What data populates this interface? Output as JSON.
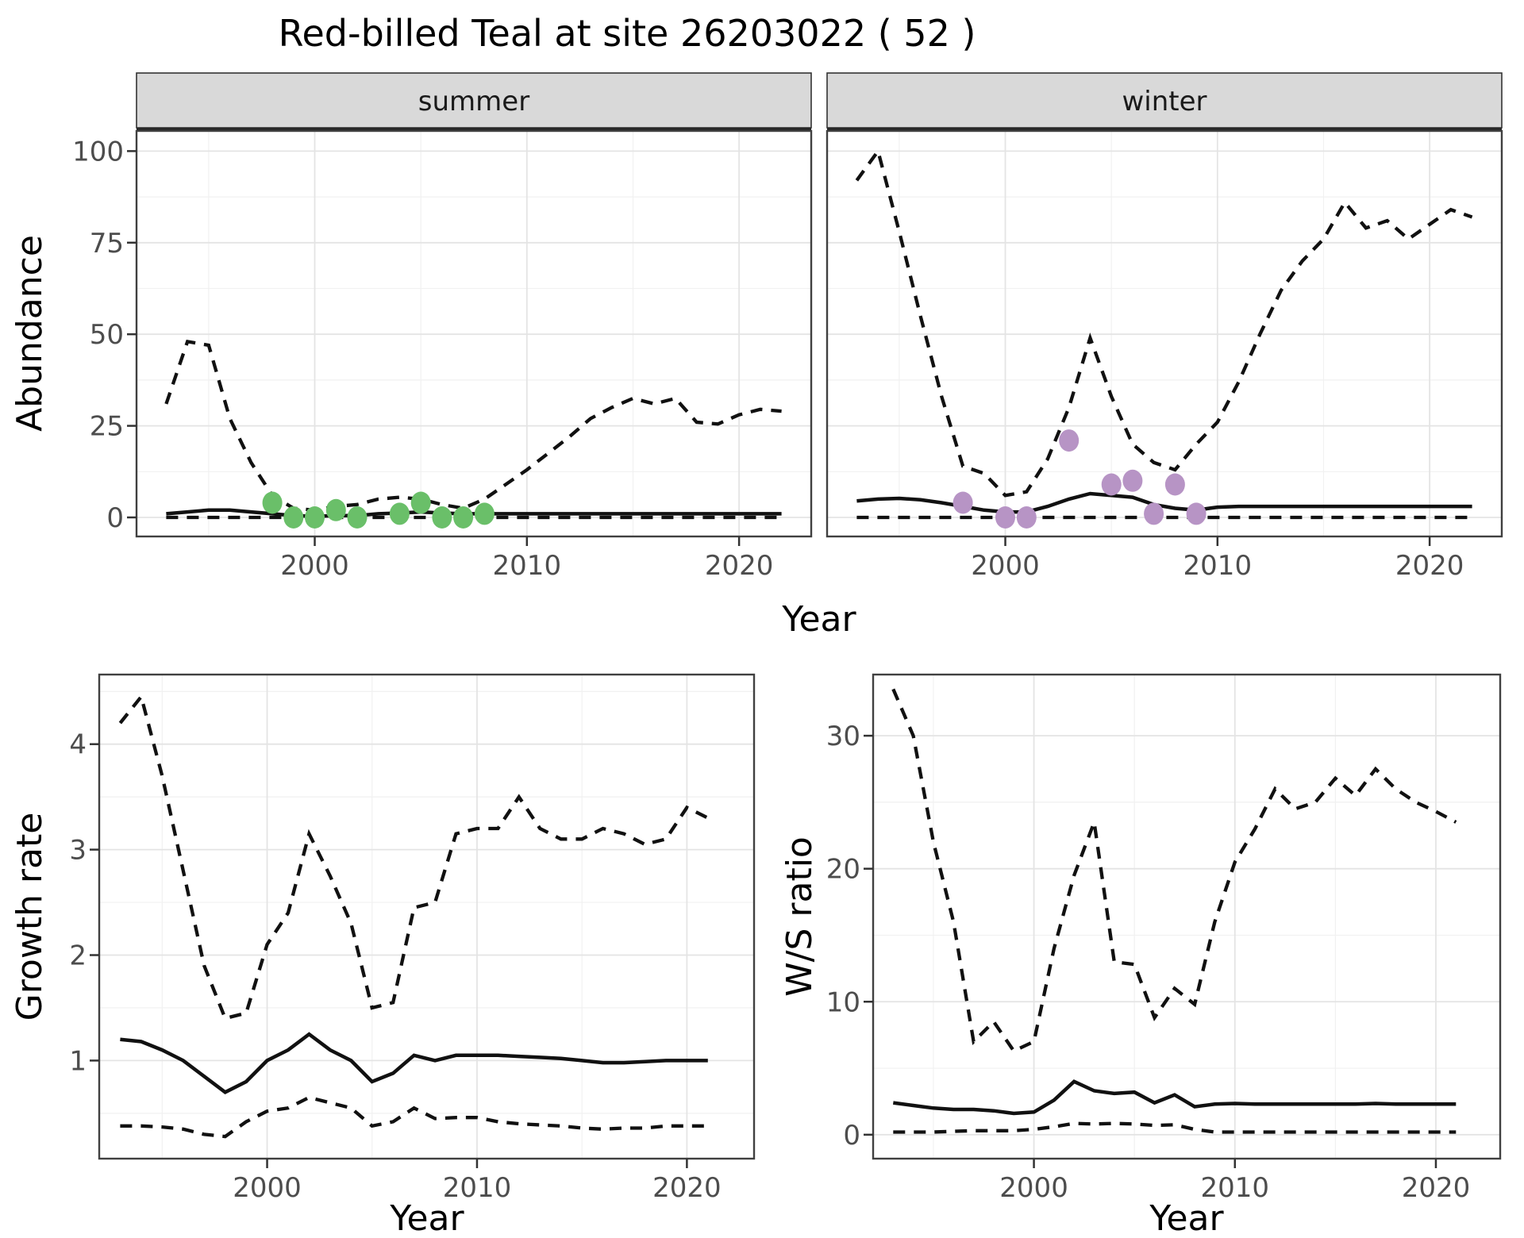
{
  "title": "Red-billed Teal at site 26203022 ( 52 )",
  "axis_titles": {
    "x": "Year",
    "y_top": "Abundance",
    "y_growth": "Growth rate",
    "y_ratio": "W/S ratio"
  },
  "facets": [
    "summer",
    "winter"
  ],
  "colors": {
    "summer_points": "#6abf69",
    "winter_points": "#b794c5",
    "line": "#111111",
    "strip_bg": "#d9d9d9",
    "strip_border": "#333333",
    "panel_border": "#404040",
    "grid_major": "#e4e4e4",
    "grid_minor": "#f1f1f1",
    "tick_text": "#4d4d4d"
  },
  "chart_data": [
    {
      "id": "abundance-summer",
      "type": "line",
      "facet": "summer",
      "xlabel": "Year",
      "ylabel": "Abundance",
      "xlim": [
        1991.6,
        2023.4
      ],
      "ylim": [
        -5.2,
        105.5
      ],
      "x_ticks": [
        2000,
        2010,
        2020
      ],
      "x_minor": [
        1995,
        2005,
        2015
      ],
      "y_ticks": [
        0,
        25,
        50,
        75,
        100
      ],
      "y_minor": [
        12.5,
        37.5,
        62.5,
        87.5
      ],
      "grid": true,
      "legend": "none",
      "x": [
        1993,
        1994,
        1995,
        1996,
        1997,
        1998,
        1999,
        2000,
        2001,
        2002,
        2003,
        2004,
        2005,
        2006,
        2007,
        2008,
        2009,
        2010,
        2011,
        2012,
        2013,
        2014,
        2015,
        2016,
        2017,
        2018,
        2019,
        2020,
        2021,
        2022
      ],
      "series": [
        {
          "name": "upper-ci",
          "style": "dashed",
          "values": [
            31,
            48,
            47,
            27,
            15,
            6,
            2.5,
            2,
            3,
            3.5,
            5,
            5.5,
            5,
            3.5,
            2.5,
            5,
            9,
            13,
            17.5,
            22,
            27,
            30,
            32.5,
            31,
            32.5,
            26,
            25.5,
            28,
            29.5,
            29
          ]
        },
        {
          "name": "median",
          "style": "solid",
          "values": [
            1,
            1.5,
            2,
            2,
            1.5,
            1,
            0.5,
            0.3,
            0.5,
            0.5,
            1,
            1.2,
            1.5,
            1.2,
            1,
            1,
            1,
            1,
            1,
            1,
            1,
            1,
            1,
            1,
            1,
            1,
            1,
            1,
            1,
            1
          ]
        },
        {
          "name": "lower-ci",
          "style": "dashed",
          "values": [
            0,
            0,
            0,
            0,
            0,
            0,
            0,
            0,
            0,
            0,
            0,
            0,
            0,
            0,
            0,
            0,
            0,
            0,
            0,
            0,
            0,
            0,
            0,
            0,
            0,
            0,
            0,
            0,
            0,
            0
          ]
        }
      ],
      "points": {
        "name": "observed-counts-summer",
        "color_key": "summer_points",
        "x": [
          1998,
          1999,
          2000,
          2001,
          2002,
          2004,
          2005,
          2006,
          2007,
          2008
        ],
        "y": [
          4,
          0,
          0,
          2,
          0,
          1,
          4,
          0,
          0,
          1
        ]
      }
    },
    {
      "id": "abundance-winter",
      "type": "line",
      "facet": "winter",
      "xlabel": "Year",
      "ylabel": "Abundance",
      "xlim": [
        1991.6,
        2023.4
      ],
      "ylim": [
        -5.2,
        105.5
      ],
      "x_ticks": [
        2000,
        2010,
        2020
      ],
      "x_minor": [
        1995,
        2005,
        2015
      ],
      "y_ticks": [
        0,
        25,
        50,
        75,
        100
      ],
      "y_minor": [
        12.5,
        37.5,
        62.5,
        87.5
      ],
      "grid": true,
      "legend": "none",
      "x": [
        1993,
        1994,
        1995,
        1996,
        1997,
        1998,
        1999,
        2000,
        2001,
        2002,
        2003,
        2004,
        2005,
        2006,
        2007,
        2008,
        2009,
        2010,
        2011,
        2012,
        2013,
        2014,
        2015,
        2016,
        2017,
        2018,
        2019,
        2020,
        2021,
        2022
      ],
      "series": [
        {
          "name": "upper-ci",
          "style": "dashed",
          "values": [
            92,
            100,
            78,
            55,
            33,
            14,
            12,
            6,
            7,
            16,
            30,
            49,
            33,
            20,
            15,
            13,
            20,
            26,
            37,
            50,
            62,
            70,
            76,
            86,
            79,
            81,
            76,
            80,
            84,
            82
          ]
        },
        {
          "name": "median",
          "style": "solid",
          "values": [
            4.5,
            5,
            5.2,
            4.8,
            4,
            3,
            2,
            1.5,
            1.5,
            3,
            5,
            6.5,
            6,
            5.5,
            3.5,
            2.5,
            2,
            2.8,
            3,
            3,
            3,
            3,
            3,
            3,
            3,
            3,
            3,
            3,
            3,
            3
          ]
        },
        {
          "name": "lower-ci",
          "style": "dashed",
          "values": [
            0,
            0,
            0,
            0,
            0,
            0,
            0,
            0,
            0,
            0,
            0,
            0,
            0,
            0,
            0,
            0,
            0,
            0,
            0,
            0,
            0,
            0,
            0,
            0,
            0,
            0,
            0,
            0,
            0,
            0
          ]
        }
      ],
      "points": {
        "name": "observed-counts-winter",
        "color_key": "winter_points",
        "x": [
          1998,
          2000,
          2001,
          2003,
          2005,
          2006,
          2007,
          2008,
          2009
        ],
        "y": [
          4,
          0,
          0,
          21,
          9,
          10,
          1,
          9,
          1
        ]
      }
    },
    {
      "id": "growth-rate",
      "type": "line",
      "facet": null,
      "xlabel": "Year",
      "ylabel": "Growth rate",
      "xlim": [
        1992,
        2023.2
      ],
      "ylim": [
        0.07,
        4.66
      ],
      "x_ticks": [
        2000,
        2010,
        2020
      ],
      "x_minor": [
        1995,
        2005,
        2015
      ],
      "y_ticks": [
        1,
        2,
        3,
        4
      ],
      "y_minor": [
        0.5,
        1.5,
        2.5,
        3.5,
        4.5
      ],
      "grid": true,
      "legend": "none",
      "x": [
        1993,
        1994,
        1995,
        1996,
        1997,
        1998,
        1999,
        2000,
        2001,
        2002,
        2003,
        2004,
        2005,
        2006,
        2007,
        2008,
        2009,
        2010,
        2011,
        2012,
        2013,
        2014,
        2015,
        2016,
        2017,
        2018,
        2019,
        2020,
        2021
      ],
      "series": [
        {
          "name": "upper-ci",
          "style": "dashed",
          "values": [
            4.2,
            4.45,
            3.7,
            2.8,
            1.9,
            1.4,
            1.45,
            2.1,
            2.4,
            3.15,
            2.75,
            2.3,
            1.5,
            1.55,
            2.45,
            2.5,
            3.15,
            3.2,
            3.2,
            3.5,
            3.2,
            3.1,
            3.1,
            3.2,
            3.15,
            3.05,
            3.1,
            3.4,
            3.3
          ]
        },
        {
          "name": "median",
          "style": "solid",
          "values": [
            1.2,
            1.18,
            1.1,
            1.0,
            0.85,
            0.7,
            0.8,
            1.0,
            1.1,
            1.25,
            1.1,
            1.0,
            0.8,
            0.88,
            1.05,
            1.0,
            1.05,
            1.05,
            1.05,
            1.04,
            1.03,
            1.02,
            1.0,
            0.98,
            0.98,
            0.99,
            1.0,
            1.0,
            1.0
          ]
        },
        {
          "name": "lower-ci",
          "style": "dashed",
          "values": [
            0.38,
            0.38,
            0.37,
            0.35,
            0.3,
            0.28,
            0.42,
            0.52,
            0.55,
            0.65,
            0.6,
            0.55,
            0.38,
            0.42,
            0.55,
            0.45,
            0.46,
            0.46,
            0.42,
            0.4,
            0.39,
            0.38,
            0.36,
            0.35,
            0.36,
            0.36,
            0.38,
            0.38,
            0.38
          ]
        }
      ],
      "points": null
    },
    {
      "id": "ws-ratio",
      "type": "line",
      "facet": null,
      "xlabel": "Year",
      "ylabel": "W/S ratio",
      "xlim": [
        1992,
        2023.2
      ],
      "ylim": [
        -1.8,
        34.6
      ],
      "x_ticks": [
        2000,
        2010,
        2020
      ],
      "x_minor": [
        1995,
        2005,
        2015
      ],
      "y_ticks": [
        0,
        10,
        20,
        30
      ],
      "y_minor": [
        5,
        15,
        25
      ],
      "grid": true,
      "legend": "none",
      "x": [
        1993,
        1994,
        1995,
        1996,
        1997,
        1998,
        1999,
        2000,
        2001,
        2002,
        2003,
        2004,
        2005,
        2006,
        2007,
        2008,
        2009,
        2010,
        2011,
        2012,
        2013,
        2014,
        2015,
        2016,
        2017,
        2018,
        2019,
        2020,
        2021
      ],
      "series": [
        {
          "name": "upper-ci",
          "style": "dashed",
          "values": [
            33.5,
            30,
            22,
            16,
            7,
            8.5,
            6.3,
            7,
            14,
            19.5,
            23.5,
            13,
            12.8,
            8.8,
            11,
            9.8,
            16,
            20.5,
            23,
            26,
            24.5,
            25,
            26.8,
            25.5,
            27.5,
            26,
            25,
            24.3,
            23.5
          ]
        },
        {
          "name": "median",
          "style": "solid",
          "values": [
            2.4,
            2.2,
            2.0,
            1.9,
            1.9,
            1.8,
            1.6,
            1.7,
            2.6,
            4.0,
            3.3,
            3.1,
            3.2,
            2.4,
            3.0,
            2.1,
            2.3,
            2.35,
            2.3,
            2.3,
            2.3,
            2.3,
            2.3,
            2.3,
            2.35,
            2.3,
            2.3,
            2.3,
            2.3
          ]
        },
        {
          "name": "lower-ci",
          "style": "dashed",
          "values": [
            0.2,
            0.2,
            0.2,
            0.25,
            0.3,
            0.3,
            0.3,
            0.4,
            0.6,
            0.85,
            0.8,
            0.85,
            0.8,
            0.7,
            0.75,
            0.4,
            0.2,
            0.2,
            0.2,
            0.2,
            0.2,
            0.2,
            0.2,
            0.2,
            0.2,
            0.2,
            0.2,
            0.2,
            0.2
          ]
        }
      ],
      "points": null
    }
  ]
}
